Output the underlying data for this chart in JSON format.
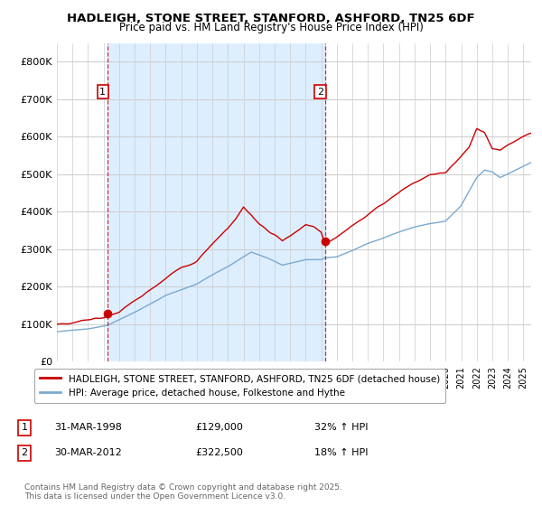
{
  "title": "HADLEIGH, STONE STREET, STANFORD, ASHFORD, TN25 6DF",
  "subtitle": "Price paid vs. HM Land Registry's House Price Index (HPI)",
  "red_label": "HADLEIGH, STONE STREET, STANFORD, ASHFORD, TN25 6DF (detached house)",
  "blue_label": "HPI: Average price, detached house, Folkestone and Hythe",
  "annotation1_label": "1",
  "annotation1_date": "31-MAR-1998",
  "annotation1_price": "£129,000",
  "annotation1_hpi": "32% ↑ HPI",
  "annotation2_label": "2",
  "annotation2_date": "30-MAR-2012",
  "annotation2_price": "£322,500",
  "annotation2_hpi": "18% ↑ HPI",
  "footer": "Contains HM Land Registry data © Crown copyright and database right 2025.\nThis data is licensed under the Open Government Licence v3.0.",
  "ylim": [
    0,
    850000
  ],
  "yticks": [
    0,
    100000,
    200000,
    300000,
    400000,
    500000,
    600000,
    700000,
    800000
  ],
  "red_color": "#cc0000",
  "blue_color": "#7aaad0",
  "shade_color": "#ddeeff",
  "background_color": "#ffffff",
  "grid_color": "#cccccc",
  "ann1_year": 1998.25,
  "ann2_year": 2012.25,
  "ann1_price": 129000,
  "ann2_price": 322500,
  "xstart": 1995.0,
  "xend": 2025.5
}
